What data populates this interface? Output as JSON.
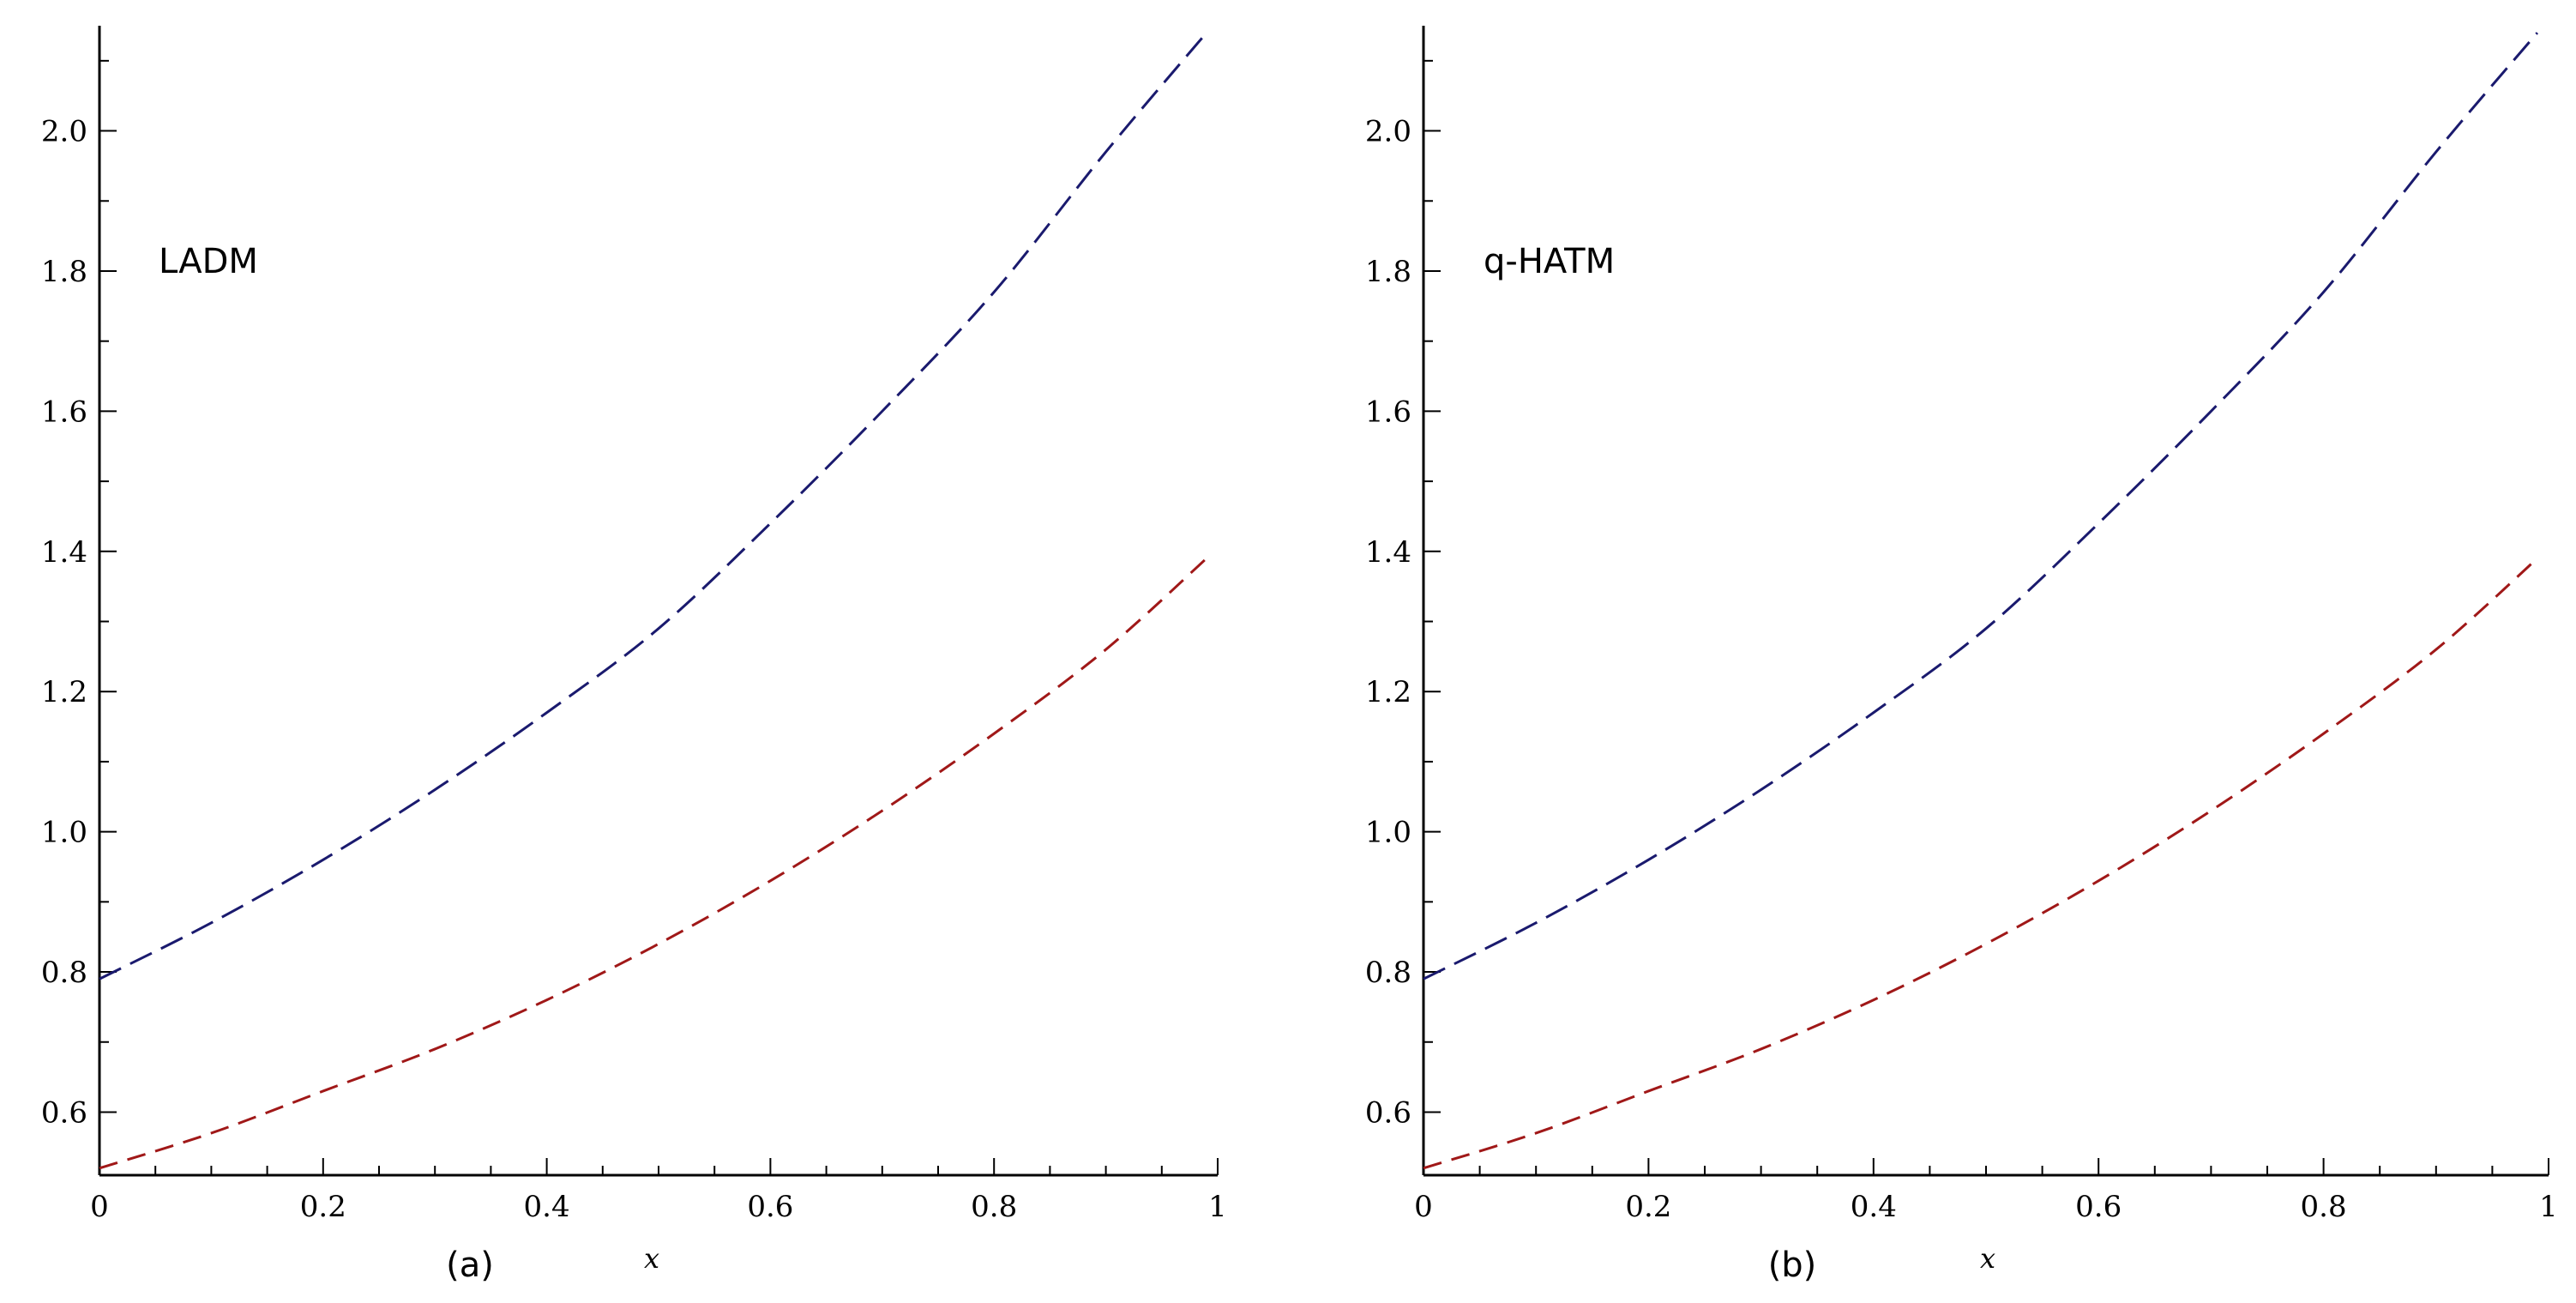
{
  "chart_data": [
    {
      "type": "line",
      "panel_label": "(a)",
      "annotation": "LADM",
      "xlabel": "x",
      "ylabel": "",
      "xlim": [
        0,
        1
      ],
      "ylim": [
        0.51,
        2.15
      ],
      "x_ticks": [
        "0",
        "0.2",
        "0.4",
        "0.6",
        "0.8",
        "1"
      ],
      "y_ticks": [
        "0.6",
        "0.8",
        "1.0",
        "1.2",
        "1.4",
        "1.6",
        "1.8",
        "2.0"
      ],
      "grid": false,
      "x": [
        0,
        0.1,
        0.2,
        0.3,
        0.4,
        0.5,
        0.6,
        0.7,
        0.8,
        0.9,
        0.99
      ],
      "series": [
        {
          "color": "#1a1a6e",
          "style": "dashed",
          "values": [
            0.79,
            0.87,
            0.96,
            1.06,
            1.17,
            1.29,
            1.44,
            1.6,
            1.77,
            1.97,
            2.14
          ]
        },
        {
          "color": "#a01818",
          "style": "dashed",
          "values": [
            0.52,
            0.57,
            0.63,
            0.69,
            0.76,
            0.84,
            0.93,
            1.03,
            1.14,
            1.26,
            1.39
          ]
        }
      ]
    },
    {
      "type": "line",
      "panel_label": "(b)",
      "annotation": "q-HATM",
      "xlabel": "x",
      "ylabel": "",
      "xlim": [
        0,
        1
      ],
      "ylim": [
        0.51,
        2.15
      ],
      "x_ticks": [
        "0",
        "0.2",
        "0.4",
        "0.6",
        "0.8",
        "1"
      ],
      "y_ticks": [
        "0.6",
        "0.8",
        "1.0",
        "1.2",
        "1.4",
        "1.6",
        "1.8",
        "2.0"
      ],
      "grid": false,
      "x": [
        0,
        0.1,
        0.2,
        0.3,
        0.4,
        0.5,
        0.6,
        0.7,
        0.8,
        0.9,
        0.99
      ],
      "series": [
        {
          "color": "#1a1a6e",
          "style": "dashed",
          "values": [
            0.79,
            0.87,
            0.96,
            1.06,
            1.17,
            1.29,
            1.44,
            1.6,
            1.77,
            1.97,
            2.14
          ]
        },
        {
          "color": "#a01818",
          "style": "dashed",
          "values": [
            0.52,
            0.57,
            0.63,
            0.69,
            0.76,
            0.84,
            0.93,
            1.03,
            1.14,
            1.26,
            1.39
          ]
        }
      ]
    }
  ]
}
